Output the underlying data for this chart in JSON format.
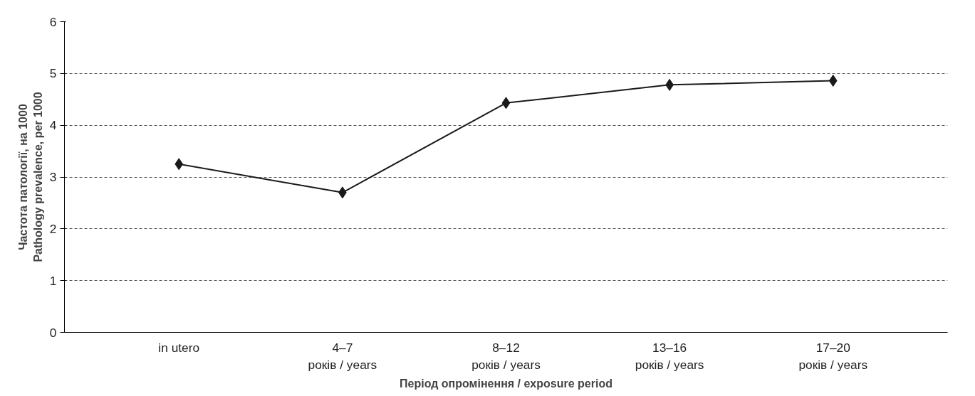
{
  "chart_data": {
    "type": "line",
    "xlabel": "Період опромінення / exposure period",
    "ylabel": "Частота патології, на 1000\nPathology prevalence, per 1000",
    "categories": [
      "in utero",
      "4–7\nроків / years",
      "8–12\nроків / years",
      "13–16\nроків / years",
      "17–20\nроків / years"
    ],
    "series": [
      {
        "color": "#1a1a1a",
        "values": [
          3.25,
          2.7,
          4.43,
          4.78,
          4.86
        ]
      }
    ],
    "ylim": [
      0,
      6
    ],
    "yticks": [
      0,
      1,
      2,
      3,
      4,
      5,
      6
    ],
    "grid": "y",
    "marker": "diamond",
    "line_style": "solid"
  }
}
